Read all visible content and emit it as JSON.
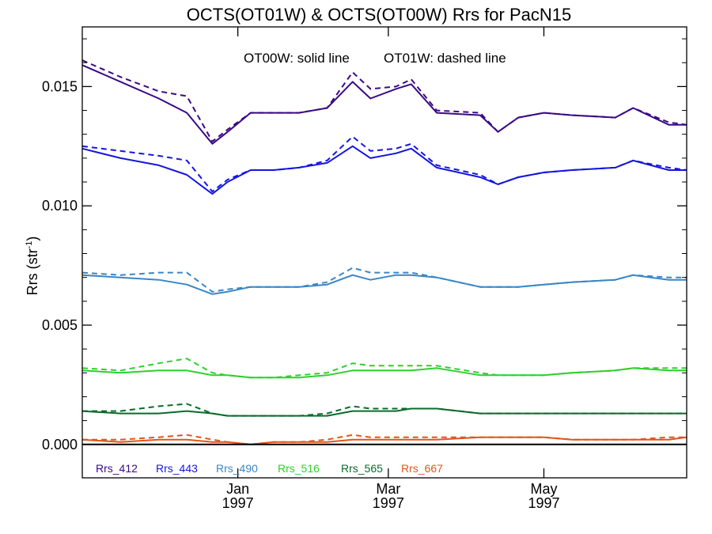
{
  "chart_data": {
    "type": "line",
    "title": "OCTS(OT01W) & OCTS(OT00W)  Rrs for PacN15",
    "ylabel": "Rrs (str",
    "ylabel_sup": "-1",
    "ylabel_close": ")",
    "annotation_solid": "OT00W: solid line",
    "annotation_dashed": "OT01W: dashed line",
    "x_unit": "days since 1996-11-01",
    "xlim": [
      0,
      237
    ],
    "ylim": [
      -0.0014,
      0.0175
    ],
    "yticks": [
      {
        "value": 0.0,
        "label": "0.000"
      },
      {
        "value": 0.005,
        "label": "0.005"
      },
      {
        "value": 0.01,
        "label": "0.010"
      },
      {
        "value": 0.015,
        "label": "0.015"
      }
    ],
    "xticks": [
      {
        "value": 61,
        "month": "Jan",
        "year": "1997"
      },
      {
        "value": 120,
        "month": "Mar",
        "year": "1997"
      },
      {
        "value": 181,
        "month": "May",
        "year": "1997"
      }
    ],
    "x": [
      0,
      15,
      30,
      41,
      51,
      57,
      66,
      75,
      85,
      96,
      106,
      113,
      123,
      129,
      139,
      156,
      163,
      171,
      181,
      192,
      209,
      216,
      230,
      237
    ],
    "series": [
      {
        "name": "Rrs_412",
        "color": "#3a0a85",
        "solid": [
          0.0159,
          0.0152,
          0.0145,
          0.0139,
          0.0126,
          0.0131,
          0.0139,
          0.0139,
          0.0139,
          0.0141,
          0.0152,
          0.0145,
          0.0149,
          0.0151,
          0.0139,
          0.0138,
          0.0131,
          0.0137,
          0.0139,
          0.0138,
          0.0137,
          0.0141,
          0.0134,
          0.0134
        ],
        "dashed": [
          0.0161,
          0.0154,
          0.0148,
          0.0146,
          0.0127,
          0.0132,
          0.0139,
          0.0139,
          0.0139,
          0.0141,
          0.0156,
          0.0149,
          0.015,
          0.0153,
          0.014,
          0.0139,
          0.0131,
          0.0137,
          0.0139,
          0.0138,
          0.0137,
          0.0141,
          0.0135,
          0.0134
        ]
      },
      {
        "name": "Rrs_443",
        "color": "#1515e0",
        "solid": [
          0.0124,
          0.012,
          0.0117,
          0.0113,
          0.0105,
          0.011,
          0.0115,
          0.0115,
          0.0116,
          0.0118,
          0.0125,
          0.012,
          0.0122,
          0.0124,
          0.0116,
          0.0112,
          0.0109,
          0.0112,
          0.0114,
          0.0115,
          0.0116,
          0.0119,
          0.0115,
          0.0115
        ],
        "dashed": [
          0.0125,
          0.0123,
          0.0121,
          0.0119,
          0.0106,
          0.0111,
          0.0115,
          0.0115,
          0.0116,
          0.0119,
          0.0129,
          0.0123,
          0.0124,
          0.0126,
          0.0117,
          0.0113,
          0.0109,
          0.0112,
          0.0114,
          0.0115,
          0.0116,
          0.0119,
          0.0116,
          0.0115
        ]
      },
      {
        "name": "Rrs_490",
        "color": "#3a86c6",
        "solid": [
          0.0071,
          0.007,
          0.0069,
          0.0067,
          0.0063,
          0.0064,
          0.0066,
          0.0066,
          0.0066,
          0.0067,
          0.0071,
          0.0069,
          0.0071,
          0.0071,
          0.007,
          0.0066,
          0.0066,
          0.0066,
          0.0067,
          0.0068,
          0.0069,
          0.0071,
          0.0069,
          0.0069
        ],
        "dashed": [
          0.0072,
          0.0071,
          0.0072,
          0.0072,
          0.0064,
          0.0065,
          0.0066,
          0.0066,
          0.0066,
          0.0068,
          0.0074,
          0.0072,
          0.0072,
          0.0072,
          0.007,
          0.0066,
          0.0066,
          0.0066,
          0.0067,
          0.0068,
          0.0069,
          0.0071,
          0.007,
          0.007
        ]
      },
      {
        "name": "Rrs_516",
        "color": "#2fcf2f",
        "solid": [
          0.0031,
          0.003,
          0.0031,
          0.0031,
          0.0029,
          0.0029,
          0.0028,
          0.0028,
          0.0028,
          0.0029,
          0.0031,
          0.0031,
          0.0031,
          0.0031,
          0.0032,
          0.0029,
          0.0029,
          0.0029,
          0.0029,
          0.003,
          0.0031,
          0.0032,
          0.0031,
          0.0031
        ],
        "dashed": [
          0.0032,
          0.0031,
          0.0034,
          0.0036,
          0.003,
          0.0029,
          0.0028,
          0.0028,
          0.0029,
          0.003,
          0.0034,
          0.0033,
          0.0033,
          0.0033,
          0.0033,
          0.003,
          0.0029,
          0.0029,
          0.0029,
          0.003,
          0.0031,
          0.0032,
          0.0032,
          0.0032
        ]
      },
      {
        "name": "Rrs_565",
        "color": "#0b6b2c",
        "solid": [
          0.0014,
          0.0013,
          0.0013,
          0.0014,
          0.0013,
          0.0012,
          0.0012,
          0.0012,
          0.0012,
          0.0012,
          0.0014,
          0.0014,
          0.0014,
          0.0015,
          0.0015,
          0.0013,
          0.0013,
          0.0013,
          0.0013,
          0.0013,
          0.0013,
          0.0013,
          0.0013,
          0.0013
        ],
        "dashed": [
          0.0014,
          0.0014,
          0.0016,
          0.0017,
          0.0013,
          0.0012,
          0.0012,
          0.0012,
          0.0012,
          0.0013,
          0.0016,
          0.0015,
          0.0015,
          0.0015,
          0.0015,
          0.0013,
          0.0013,
          0.0013,
          0.0013,
          0.0013,
          0.0013,
          0.0013,
          0.0013,
          0.0013
        ]
      },
      {
        "name": "Rrs_667",
        "color": "#e0561c",
        "solid": [
          0.0002,
          0.0001,
          0.0002,
          0.0002,
          0.0001,
          0.0001,
          0.0,
          0.0001,
          0.0001,
          0.0001,
          0.0002,
          0.0002,
          0.0002,
          0.0002,
          0.0002,
          0.0003,
          0.0003,
          0.0003,
          0.0003,
          0.0002,
          0.0002,
          0.0002,
          0.0002,
          0.0003
        ],
        "dashed": [
          0.0002,
          0.0002,
          0.0003,
          0.0004,
          0.0002,
          0.0001,
          0.0,
          0.0001,
          0.0001,
          0.0002,
          0.0004,
          0.0003,
          0.0003,
          0.0003,
          0.0003,
          0.0003,
          0.0003,
          0.0003,
          0.0003,
          0.0002,
          0.0002,
          0.0002,
          0.0003,
          0.0003
        ]
      }
    ],
    "grid": false,
    "legend_position": "bottom-left inside plot"
  }
}
